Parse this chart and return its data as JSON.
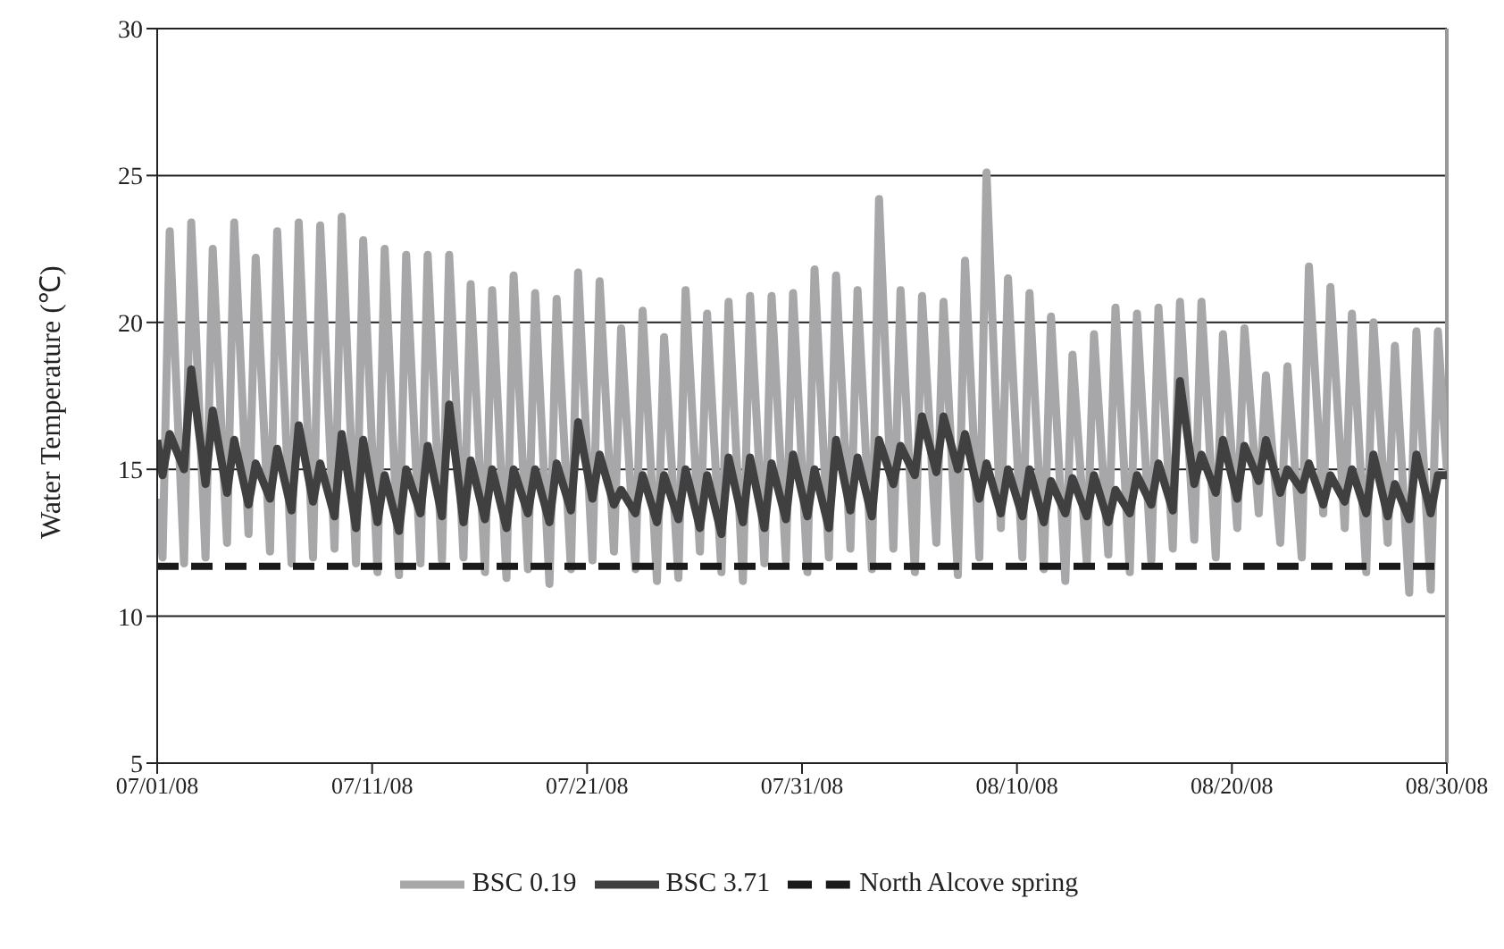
{
  "chart_data": {
    "type": "line",
    "ylabel": "Water Temperature (℃)",
    "x": [
      "--07-01T00:00",
      "--07-01T06:00",
      "--07-01T14:00",
      "--07-02T06:00",
      "--07-02T14:00",
      "--07-03T06:00",
      "--07-03T14:00",
      "--07-04T06:00",
      "--07-04T14:00",
      "--07-05T06:00",
      "--07-05T14:00",
      "--07-06T06:00",
      "--07-06T14:00",
      "--07-07T06:00",
      "--07-07T14:00",
      "--07-08T06:00",
      "--07-08T14:00",
      "--07-09T06:00",
      "--07-09T14:00",
      "--07-10T06:00",
      "--07-10T14:00",
      "--07-11T06:00",
      "--07-11T14:00",
      "--07-12T06:00",
      "--07-12T14:00",
      "--07-13T06:00",
      "--07-13T14:00",
      "--07-14T06:00",
      "--07-14T14:00",
      "--07-15T06:00",
      "--07-15T14:00",
      "--07-16T06:00",
      "--07-16T14:00",
      "--07-17T06:00",
      "--07-17T14:00",
      "--07-18T06:00",
      "--07-18T14:00",
      "--07-19T06:00",
      "--07-19T14:00",
      "--07-20T06:00",
      "--07-20T14:00",
      "--07-21T06:00",
      "--07-21T14:00",
      "--07-22T06:00",
      "--07-22T14:00",
      "--07-23T06:00",
      "--07-23T14:00",
      "--07-24T06:00",
      "--07-24T14:00",
      "--07-25T06:00",
      "--07-25T14:00",
      "--07-26T06:00",
      "--07-26T14:00",
      "--07-27T06:00",
      "--07-27T14:00",
      "--07-28T06:00",
      "--07-28T14:00",
      "--07-29T06:00",
      "--07-29T14:00",
      "--07-30T06:00",
      "--07-30T14:00",
      "--07-31T06:00",
      "--07-31T14:00",
      "--08-01T06:00",
      "--08-01T14:00",
      "--08-02T06:00",
      "--08-02T14:00",
      "--08-03T06:00",
      "--08-03T14:00",
      "--08-04T06:00",
      "--08-04T14:00",
      "--08-05T06:00",
      "--08-05T14:00",
      "--08-06T06:00",
      "--08-06T14:00",
      "--08-07T06:00",
      "--08-07T14:00",
      "--08-08T06:00",
      "--08-08T14:00",
      "--08-09T06:00",
      "--08-09T14:00",
      "--08-10T06:00",
      "--08-10T14:00",
      "--08-11T06:00",
      "--08-11T14:00",
      "--08-12T06:00",
      "--08-12T14:00",
      "--08-13T06:00",
      "--08-13T14:00",
      "--08-14T06:00",
      "--08-14T14:00",
      "--08-15T06:00",
      "--08-15T14:00",
      "--08-16T06:00",
      "--08-16T14:00",
      "--08-17T06:00",
      "--08-17T14:00",
      "--08-18T06:00",
      "--08-18T14:00",
      "--08-19T06:00",
      "--08-19T14:00",
      "--08-20T06:00",
      "--08-20T14:00",
      "--08-21T06:00",
      "--08-21T14:00",
      "--08-22T06:00",
      "--08-22T14:00",
      "--08-23T06:00",
      "--08-23T14:00",
      "--08-24T06:00",
      "--08-24T14:00",
      "--08-25T06:00",
      "--08-25T14:00",
      "--08-26T06:00",
      "--08-26T14:00",
      "--08-27T06:00",
      "--08-27T14:00",
      "--08-28T06:00",
      "--08-28T14:00",
      "--08-29T06:00",
      "--08-29T14:00",
      "--08-30T00:00"
    ],
    "series": [
      {
        "name": "BSC 0.19",
        "color": "#a7a7a9",
        "values": [
          14.0,
          12.0,
          23.1,
          11.8,
          23.4,
          12.0,
          22.5,
          12.5,
          23.4,
          12.8,
          22.2,
          12.2,
          23.1,
          11.8,
          23.4,
          12.0,
          23.3,
          12.3,
          23.6,
          11.8,
          22.8,
          11.5,
          22.5,
          11.4,
          22.3,
          11.8,
          22.3,
          11.9,
          22.3,
          12.0,
          21.3,
          11.5,
          21.1,
          11.3,
          21.6,
          11.6,
          21.0,
          11.1,
          20.8,
          11.6,
          21.7,
          11.9,
          21.4,
          12.2,
          19.8,
          11.6,
          20.4,
          11.2,
          19.5,
          11.3,
          21.1,
          12.2,
          20.3,
          11.5,
          20.7,
          11.2,
          20.9,
          11.8,
          20.9,
          11.9,
          21.0,
          11.5,
          21.8,
          12.0,
          21.6,
          12.3,
          21.1,
          11.6,
          24.2,
          12.3,
          21.1,
          11.5,
          20.9,
          12.5,
          20.7,
          11.4,
          22.1,
          12.0,
          25.1,
          13.0,
          21.5,
          12.0,
          21.0,
          11.6,
          20.2,
          11.2,
          18.9,
          11.8,
          19.6,
          12.1,
          20.5,
          11.5,
          20.3,
          11.9,
          20.5,
          12.3,
          20.7,
          12.6,
          20.7,
          12.0,
          19.6,
          13.0,
          19.8,
          13.5,
          18.2,
          12.5,
          18.5,
          12.0,
          21.9,
          13.5,
          21.2,
          13.0,
          20.3,
          11.5,
          20.0,
          12.5,
          19.2,
          10.8,
          19.7,
          10.9,
          19.7,
          15.0
        ]
      },
      {
        "name": "BSC 3.71",
        "color": "#404040",
        "values": [
          16.0,
          14.8,
          16.2,
          15.0,
          18.4,
          14.5,
          17.0,
          14.2,
          16.0,
          13.8,
          15.2,
          14.0,
          15.7,
          13.6,
          16.5,
          13.9,
          15.2,
          13.4,
          16.2,
          13.0,
          16.0,
          13.2,
          14.8,
          12.9,
          15.0,
          13.5,
          15.8,
          13.4,
          17.2,
          13.2,
          15.3,
          13.3,
          15.0,
          13.0,
          15.0,
          13.5,
          15.0,
          13.2,
          15.2,
          13.6,
          16.6,
          14.0,
          15.5,
          13.8,
          14.3,
          13.5,
          14.8,
          13.2,
          14.8,
          13.3,
          15.0,
          13.0,
          14.8,
          12.8,
          15.4,
          13.2,
          15.4,
          13.0,
          15.2,
          13.3,
          15.5,
          13.4,
          15.0,
          13.0,
          16.0,
          13.6,
          15.4,
          13.4,
          16.0,
          14.5,
          15.8,
          14.8,
          16.8,
          14.9,
          16.8,
          15.0,
          16.2,
          14.0,
          15.2,
          13.5,
          15.0,
          13.4,
          15.0,
          13.2,
          14.6,
          13.5,
          14.7,
          13.4,
          14.8,
          13.2,
          14.3,
          13.5,
          14.8,
          13.8,
          15.2,
          13.6,
          18.0,
          14.5,
          15.5,
          14.2,
          16.0,
          14.0,
          15.8,
          14.6,
          16.0,
          14.2,
          15.0,
          14.3,
          15.2,
          13.8,
          14.8,
          13.9,
          15.0,
          13.5,
          15.5,
          13.4,
          14.5,
          13.3,
          15.5,
          13.5,
          14.8,
          14.8
        ]
      },
      {
        "name": "North Alcove spring",
        "color": "#1a1a1a",
        "line_style": "dashed",
        "x": [
          "--07-01",
          "--08-30"
        ],
        "values": [
          11.7,
          11.7
        ]
      }
    ],
    "xlim": [
      "--07-01",
      "--08-30"
    ],
    "xticks": [
      {
        "value": "--07-01",
        "label": "07/01/08"
      },
      {
        "value": "--07-11",
        "label": "07/11/08"
      },
      {
        "value": "--07-21",
        "label": "07/21/08"
      },
      {
        "value": "--07-31",
        "label": "07/31/08"
      },
      {
        "value": "--08-10",
        "label": "08/10/08"
      },
      {
        "value": "--08-20",
        "label": "08/20/08"
      },
      {
        "value": "--08-30",
        "label": "08/30/08"
      }
    ],
    "ylim": [
      5,
      30
    ],
    "yticks": [
      5,
      10,
      15,
      20,
      25,
      30
    ],
    "grid": "y",
    "legend": "bottom",
    "marker": "none",
    "line_style": "solid"
  }
}
